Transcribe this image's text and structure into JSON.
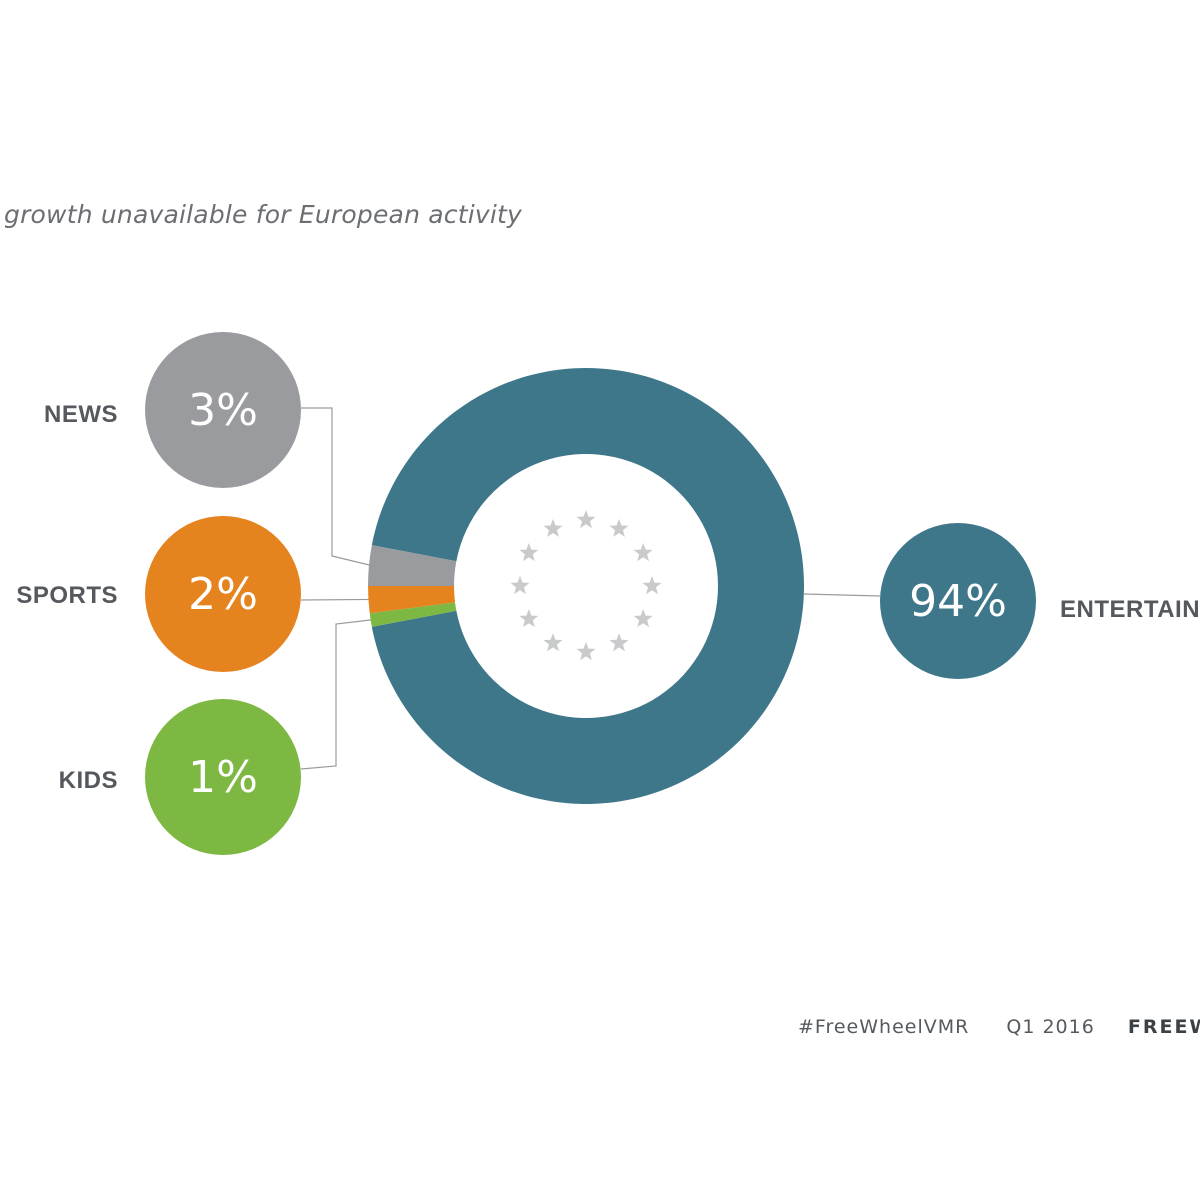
{
  "subtitle": "growth unavailable for European activity",
  "colors": {
    "entertainment": "#3e7789",
    "news": "#9a9b9e",
    "sports": "#e5831f",
    "kids": "#7db843",
    "label_text": "#55585c",
    "stars": "#c9cacc",
    "connector": "#9a9b9e"
  },
  "center_icon": "eu-stars-circle-icon",
  "chart_data": {
    "type": "pie",
    "variant": "donut",
    "slices": [
      {
        "label": "ENTERTAINMENT",
        "value": 94,
        "display": "94%",
        "color": "#3e7789"
      },
      {
        "label": "NEWS",
        "value": 3,
        "display": "3%",
        "color": "#9a9b9e"
      },
      {
        "label": "SPORTS",
        "value": 2,
        "display": "2%",
        "color": "#e5831f"
      },
      {
        "label": "KIDS",
        "value": 1,
        "display": "1%",
        "color": "#7db843"
      }
    ]
  },
  "footer": {
    "hashtag": "#FreeWheelVMR",
    "period": "Q1 2016",
    "brand": "FREEW"
  }
}
